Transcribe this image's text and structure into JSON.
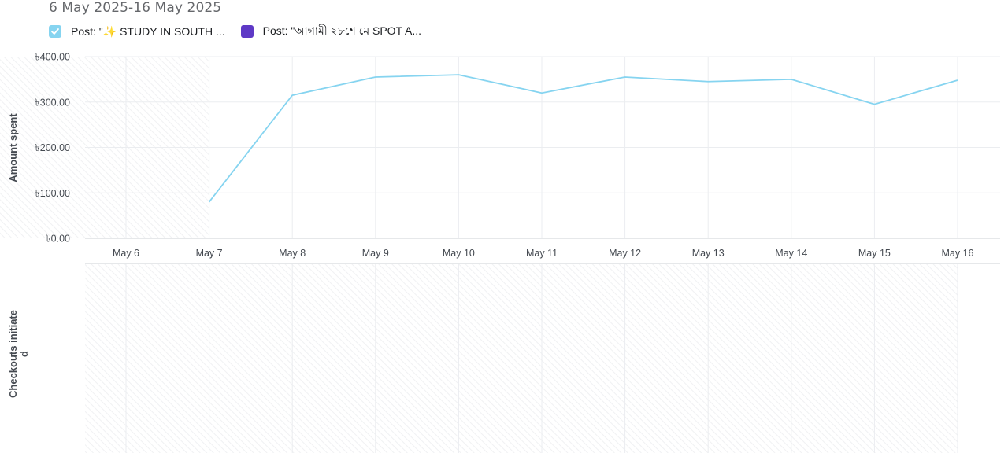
{
  "header": {
    "date_range": "6 May 2025-16 May 2025"
  },
  "legend": [
    {
      "label": "Post: \"✨ STUDY IN SOUTH ...",
      "color": "#86d4f0",
      "checked": true
    },
    {
      "label": "Post: \"আগামী ২৮শে মে SPOT A...",
      "color": "#5e39c6",
      "checked": false
    }
  ],
  "chart_data": [
    {
      "type": "line",
      "ylabel": "Amount spent",
      "xlabel": "",
      "categories": [
        "May 6",
        "May 7",
        "May 8",
        "May 9",
        "May 10",
        "May 11",
        "May 12",
        "May 13",
        "May 14",
        "May 15",
        "May 16"
      ],
      "ylim": [
        0,
        400
      ],
      "yticks": [
        "৳0.00",
        "৳100.00",
        "৳200.00",
        "৳300.00",
        "৳400.00"
      ],
      "grid": true,
      "series": [
        {
          "name": "Post: \"✨ STUDY IN SOUTH ...",
          "color": "#86d4f0",
          "values": [
            null,
            80,
            315,
            355,
            360,
            320,
            355,
            345,
            350,
            295,
            348
          ]
        }
      ]
    },
    {
      "type": "line",
      "ylabel": "Checkouts initiate d",
      "categories": [
        "May 6",
        "May 7",
        "May 8",
        "May 9",
        "May 10",
        "May 11",
        "May 12",
        "May 13",
        "May 14",
        "May 15",
        "May 16"
      ],
      "series": []
    }
  ]
}
